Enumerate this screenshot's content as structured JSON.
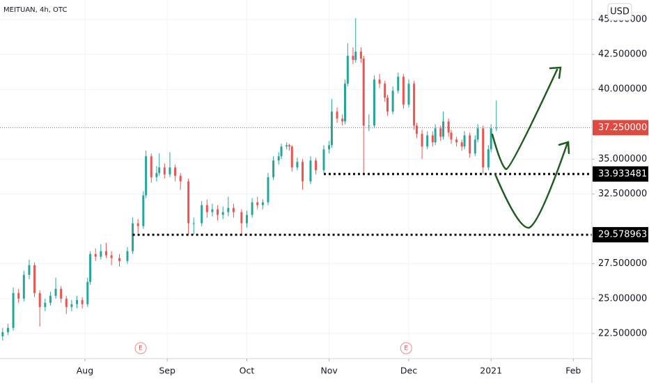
{
  "chart_data": {
    "type": "candlestick",
    "title": "MEITUAN, 4h, OTC",
    "currency": "USD",
    "up_color": "#26a69a",
    "down_color": "#ef5350",
    "grid": true,
    "xlim": [
      -1,
      222
    ],
    "ylim": [
      20.7,
      46.4
    ],
    "xticks": [
      {
        "value": 31,
        "label": "Aug"
      },
      {
        "value": 62,
        "label": "Sep"
      },
      {
        "value": 92,
        "label": "Oct"
      },
      {
        "value": 123,
        "label": "Nov"
      },
      {
        "value": 153,
        "label": "Dec"
      },
      {
        "value": 184,
        "label": "2021"
      },
      {
        "value": 215,
        "label": "Feb"
      }
    ],
    "yticks": [
      {
        "value": 22.5,
        "label": "22.500000"
      },
      {
        "value": 25,
        "label": "25.000000"
      },
      {
        "value": 27.5,
        "label": "27.500000"
      },
      {
        "value": 32.5,
        "label": "32.500000"
      },
      {
        "value": 35,
        "label": "35.000000"
      },
      {
        "value": 40,
        "label": "40.000000"
      },
      {
        "value": 42.5,
        "label": "42.500000"
      },
      {
        "value": 45,
        "label": "45.000000"
      }
    ],
    "x": [
      0,
      2,
      4,
      6,
      8,
      10,
      12,
      14,
      16,
      18,
      20,
      22,
      24,
      26,
      28,
      30,
      32,
      33,
      35,
      37,
      39,
      41,
      44,
      47,
      49,
      51,
      53,
      54,
      56,
      58,
      59,
      61,
      63,
      65,
      67,
      70,
      72,
      75,
      77,
      79,
      81,
      83,
      85,
      87,
      90,
      92,
      94,
      96,
      98,
      100,
      102,
      104,
      105,
      107,
      108,
      109,
      111,
      113,
      116,
      118,
      121,
      123,
      124,
      126,
      128,
      129,
      130,
      132,
      133,
      135,
      136,
      138,
      140,
      142,
      144,
      145,
      147,
      149,
      151,
      153,
      155,
      156,
      158,
      160,
      162,
      163,
      165,
      166,
      168,
      169,
      171,
      173,
      174,
      176,
      178,
      179,
      181,
      183,
      184,
      186
    ],
    "open": [
      22.3,
      22.6,
      22.9,
      25.4,
      25.0,
      26.7,
      27.4,
      25.4,
      24.4,
      24.7,
      25.2,
      25.7,
      25.0,
      24.4,
      24.6,
      24.9,
      24.6,
      26.2,
      28.2,
      28.0,
      28.4,
      28.1,
      27.9,
      27.7,
      28.4,
      30.4,
      30.2,
      32.4,
      35.2,
      33.7,
      34.0,
      34.4,
      33.9,
      34.4,
      33.8,
      33.4,
      30.4,
      30.4,
      31.7,
      31.2,
      31.4,
      31.0,
      31.2,
      31.5,
      31.2,
      30.4,
      31.0,
      31.9,
      31.7,
      31.9,
      33.7,
      34.9,
      35.2,
      35.9,
      36.0,
      35.9,
      34.4,
      34.8,
      33.4,
      34.9,
      34.2,
      35.7,
      36.0,
      38.4,
      37.9,
      37.7,
      40.4,
      42.4,
      42.1,
      42.7,
      42.2,
      37.4,
      37.4,
      40.7,
      40.4,
      39.4,
      38.4,
      39.9,
      40.9,
      38.9,
      40.4,
      37.4,
      36.8,
      35.9,
      36.7,
      36.2,
      37.2,
      36.6,
      37.7,
      36.9,
      36.4,
      36.2,
      35.9,
      36.7,
      35.4,
      36.4,
      37.2,
      34.4,
      35.7,
      37.2
    ],
    "high": [
      22.9,
      23.2,
      25.8,
      25.7,
      27.0,
      27.8,
      27.6,
      25.6,
      25.0,
      25.5,
      26.5,
      25.9,
      25.2,
      24.9,
      25.2,
      25.1,
      26.5,
      28.4,
      28.6,
      28.9,
      29.0,
      28.4,
      28.2,
      28.7,
      30.8,
      30.7,
      32.7,
      35.6,
      35.4,
      34.5,
      35.4,
      34.7,
      35.5,
      34.6,
      34.0,
      33.6,
      30.8,
      32.0,
      32.1,
      31.8,
      31.7,
      31.6,
      32.3,
      31.8,
      31.4,
      31.3,
      32.2,
      32.3,
      32.1,
      34.0,
      35.2,
      35.5,
      36.1,
      36.2,
      36.1,
      36.0,
      35.1,
      35.0,
      35.2,
      35.1,
      36.0,
      36.3,
      39.3,
      38.7,
      38.2,
      40.7,
      43.3,
      43.0,
      45.1,
      43.0,
      42.4,
      38.2,
      41.0,
      41.1,
      40.6,
      39.6,
      40.2,
      41.2,
      41.1,
      40.7,
      40.6,
      37.6,
      37.1,
      37.0,
      37.0,
      37.5,
      37.4,
      38.4,
      37.9,
      37.1,
      36.6,
      36.4,
      37.0,
      36.9,
      36.7,
      37.5,
      37.4,
      36.0,
      37.5,
      39.2
    ],
    "low": [
      22.0,
      22.4,
      22.7,
      24.7,
      24.8,
      26.4,
      25.1,
      23.0,
      24.1,
      24.5,
      25.0,
      24.7,
      23.9,
      24.1,
      24.3,
      24.3,
      24.4,
      26.0,
      27.7,
      27.8,
      27.9,
      27.4,
      27.3,
      27.5,
      28.2,
      29.7,
      30.0,
      32.2,
      33.3,
      33.4,
      33.8,
      33.6,
      33.7,
      33.4,
      32.8,
      29.6,
      29.6,
      30.2,
      30.8,
      30.9,
      30.6,
      30.7,
      30.9,
      30.8,
      29.6,
      30.1,
      30.8,
      31.4,
      31.4,
      31.7,
      33.5,
      34.6,
      35.0,
      35.7,
      35.6,
      34.1,
      34.2,
      32.8,
      33.2,
      33.9,
      34.0,
      35.4,
      35.8,
      37.6,
      37.4,
      37.5,
      40.2,
      41.8,
      41.9,
      41.9,
      34.0,
      37.0,
      37.2,
      40.1,
      39.1,
      38.1,
      38.2,
      39.7,
      38.6,
      38.7,
      37.1,
      36.5,
      35.0,
      35.7,
      35.9,
      36.0,
      36.3,
      36.4,
      36.6,
      36.1,
      35.9,
      35.6,
      35.7,
      35.1,
      35.2,
      36.2,
      33.93,
      34.2,
      35.5,
      37.0
    ],
    "close": [
      22.6,
      22.9,
      25.4,
      25.0,
      26.7,
      27.4,
      25.4,
      24.4,
      24.7,
      25.2,
      25.7,
      25.0,
      24.4,
      24.6,
      24.9,
      24.6,
      26.2,
      28.2,
      28.0,
      28.4,
      28.1,
      27.9,
      27.7,
      28.4,
      30.4,
      30.2,
      32.4,
      35.2,
      33.7,
      34.0,
      34.4,
      33.9,
      34.4,
      33.8,
      33.4,
      30.4,
      30.4,
      31.7,
      31.2,
      31.4,
      31.0,
      31.2,
      31.5,
      31.2,
      30.4,
      31.0,
      31.9,
      31.7,
      31.9,
      33.7,
      34.9,
      35.2,
      35.9,
      36.0,
      35.9,
      34.4,
      34.8,
      33.4,
      34.9,
      34.2,
      35.7,
      36.0,
      38.4,
      37.9,
      37.7,
      40.4,
      42.4,
      42.1,
      42.7,
      42.2,
      37.4,
      37.4,
      40.7,
      40.4,
      39.4,
      38.4,
      39.9,
      40.9,
      38.9,
      40.4,
      37.4,
      36.8,
      35.9,
      36.7,
      36.2,
      37.2,
      36.6,
      37.7,
      36.9,
      36.4,
      36.2,
      35.9,
      36.7,
      35.4,
      36.4,
      37.2,
      34.4,
      35.7,
      37.2,
      37.25
    ],
    "price_lines": [
      {
        "value": 37.25,
        "label": "37.250000",
        "color": "#e0493f"
      },
      {
        "value": 33.933481,
        "label": "33.933481",
        "color": "#000000",
        "start": 121
      },
      {
        "value": 29.578963,
        "label": "29.578963",
        "color": "#000000",
        "start": 49
      }
    ],
    "events": [
      {
        "x": 52,
        "label": "E"
      },
      {
        "x": 152,
        "label": "E"
      }
    ]
  }
}
